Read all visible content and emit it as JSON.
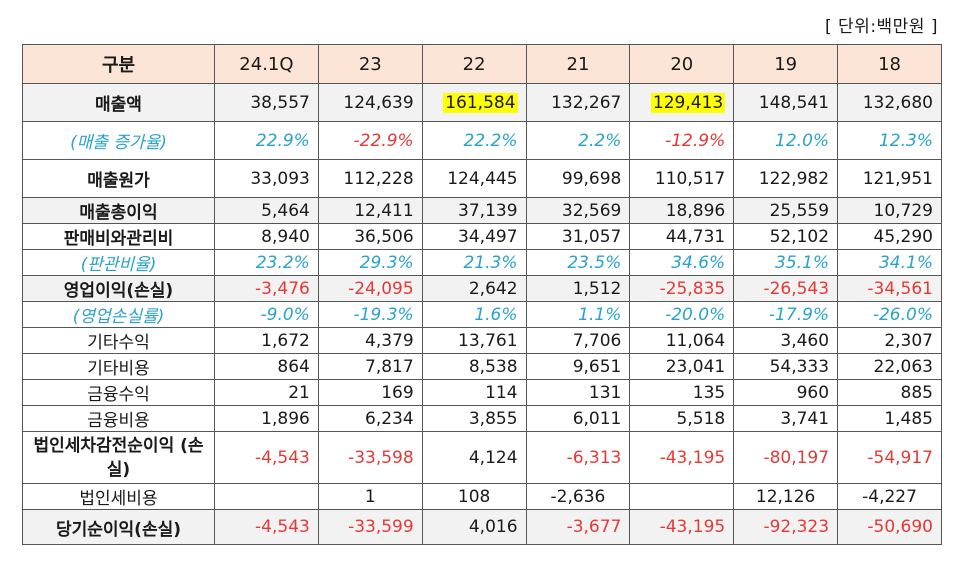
{
  "unit_label": "[ 단위:백만원 ]",
  "table": {
    "header": [
      "구분",
      "24.1Q",
      "23",
      "22",
      "21",
      "20",
      "19",
      "18"
    ],
    "rows": [
      {
        "label": "매출액",
        "values": [
          "38,557",
          "124,639",
          "161,584",
          "132,267",
          "129,413",
          "148,541",
          "132,680"
        ],
        "highlight": [
          2,
          4
        ]
      },
      {
        "label": "(매출 증가율)",
        "values": [
          "22.9%",
          "-22.9%",
          "22.2%",
          "2.2%",
          "-12.9%",
          "12.0%",
          "12.3%"
        ]
      },
      {
        "label": "매출원가",
        "values": [
          "33,093",
          "112,228",
          "124,445",
          "99,698",
          "110,517",
          "122,982",
          "121,951"
        ]
      },
      {
        "label": "매출총이익",
        "values": [
          "5,464",
          "12,411",
          "37,139",
          "32,569",
          "18,896",
          "25,559",
          "10,729"
        ]
      },
      {
        "label": "판매비와관리비",
        "values": [
          "8,940",
          "36,506",
          "34,497",
          "31,057",
          "44,731",
          "52,102",
          "45,290"
        ]
      },
      {
        "label": "(판관비율)",
        "values": [
          "23.2%",
          "29.3%",
          "21.3%",
          "23.5%",
          "34.6%",
          "35.1%",
          "34.1%"
        ]
      },
      {
        "label": "영업이익(손실)",
        "values": [
          "-3,476",
          "-24,095",
          "2,642",
          "1,512",
          "-25,835",
          "-26,543",
          "-34,561"
        ]
      },
      {
        "label": "(영업손실률)",
        "values": [
          "-9.0%",
          "-19.3%",
          "1.6%",
          "1.1%",
          "-20.0%",
          "-17.9%",
          "-26.0%"
        ]
      },
      {
        "label": "기타수익",
        "values": [
          "1,672",
          "4,379",
          "13,761",
          "7,706",
          "11,064",
          "3,460",
          "2,307"
        ]
      },
      {
        "label": "기타비용",
        "values": [
          "864",
          "7,817",
          "8,538",
          "9,651",
          "23,041",
          "54,333",
          "22,063"
        ]
      },
      {
        "label": "금융수익",
        "values": [
          "21",
          "169",
          "114",
          "131",
          "135",
          "960",
          "885"
        ]
      },
      {
        "label": "금융비용",
        "values": [
          "1,896",
          "6,234",
          "3,855",
          "6,011",
          "5,518",
          "3,741",
          "1,485"
        ]
      },
      {
        "label": "법인세차감전순이익 (손실)",
        "values": [
          "-4,543",
          "-33,598",
          "4,124",
          "-6,313",
          "-43,195",
          "-80,197",
          "-54,917"
        ]
      },
      {
        "label": "법인세비용",
        "values": [
          "",
          "1",
          "108",
          "-2,636",
          "",
          "12,126",
          "-4,227"
        ]
      },
      {
        "label": "당기순이익(손실)",
        "values": [
          "-4,543",
          "-33,599",
          "4,016",
          "-3,677",
          "-43,195",
          "-92,323",
          "-50,690"
        ]
      }
    ]
  }
}
